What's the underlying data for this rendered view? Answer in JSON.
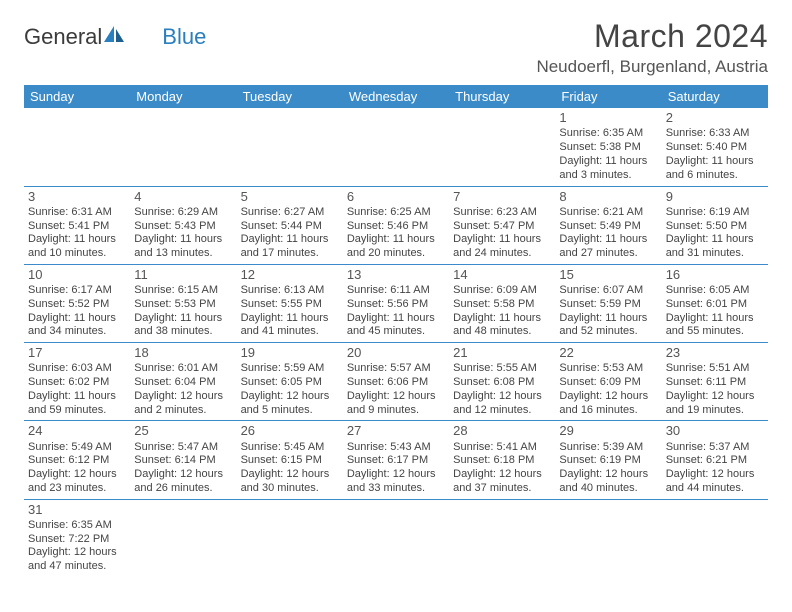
{
  "brand": {
    "part1": "General",
    "part2": "Blue"
  },
  "title": "March 2024",
  "location": "Neudoerfl, Burgenland, Austria",
  "colors": {
    "accent": "#3b8bc9",
    "text": "#444444",
    "header_text": "#ffffff",
    "bg": "#ffffff"
  },
  "day_headers": [
    "Sunday",
    "Monday",
    "Tuesday",
    "Wednesday",
    "Thursday",
    "Friday",
    "Saturday"
  ],
  "weeks": [
    [
      null,
      null,
      null,
      null,
      null,
      {
        "n": "1",
        "sunrise": "Sunrise: 6:35 AM",
        "sunset": "Sunset: 5:38 PM",
        "day1": "Daylight: 11 hours",
        "day2": "and 3 minutes."
      },
      {
        "n": "2",
        "sunrise": "Sunrise: 6:33 AM",
        "sunset": "Sunset: 5:40 PM",
        "day1": "Daylight: 11 hours",
        "day2": "and 6 minutes."
      }
    ],
    [
      {
        "n": "3",
        "sunrise": "Sunrise: 6:31 AM",
        "sunset": "Sunset: 5:41 PM",
        "day1": "Daylight: 11 hours",
        "day2": "and 10 minutes."
      },
      {
        "n": "4",
        "sunrise": "Sunrise: 6:29 AM",
        "sunset": "Sunset: 5:43 PM",
        "day1": "Daylight: 11 hours",
        "day2": "and 13 minutes."
      },
      {
        "n": "5",
        "sunrise": "Sunrise: 6:27 AM",
        "sunset": "Sunset: 5:44 PM",
        "day1": "Daylight: 11 hours",
        "day2": "and 17 minutes."
      },
      {
        "n": "6",
        "sunrise": "Sunrise: 6:25 AM",
        "sunset": "Sunset: 5:46 PM",
        "day1": "Daylight: 11 hours",
        "day2": "and 20 minutes."
      },
      {
        "n": "7",
        "sunrise": "Sunrise: 6:23 AM",
        "sunset": "Sunset: 5:47 PM",
        "day1": "Daylight: 11 hours",
        "day2": "and 24 minutes."
      },
      {
        "n": "8",
        "sunrise": "Sunrise: 6:21 AM",
        "sunset": "Sunset: 5:49 PM",
        "day1": "Daylight: 11 hours",
        "day2": "and 27 minutes."
      },
      {
        "n": "9",
        "sunrise": "Sunrise: 6:19 AM",
        "sunset": "Sunset: 5:50 PM",
        "day1": "Daylight: 11 hours",
        "day2": "and 31 minutes."
      }
    ],
    [
      {
        "n": "10",
        "sunrise": "Sunrise: 6:17 AM",
        "sunset": "Sunset: 5:52 PM",
        "day1": "Daylight: 11 hours",
        "day2": "and 34 minutes."
      },
      {
        "n": "11",
        "sunrise": "Sunrise: 6:15 AM",
        "sunset": "Sunset: 5:53 PM",
        "day1": "Daylight: 11 hours",
        "day2": "and 38 minutes."
      },
      {
        "n": "12",
        "sunrise": "Sunrise: 6:13 AM",
        "sunset": "Sunset: 5:55 PM",
        "day1": "Daylight: 11 hours",
        "day2": "and 41 minutes."
      },
      {
        "n": "13",
        "sunrise": "Sunrise: 6:11 AM",
        "sunset": "Sunset: 5:56 PM",
        "day1": "Daylight: 11 hours",
        "day2": "and 45 minutes."
      },
      {
        "n": "14",
        "sunrise": "Sunrise: 6:09 AM",
        "sunset": "Sunset: 5:58 PM",
        "day1": "Daylight: 11 hours",
        "day2": "and 48 minutes."
      },
      {
        "n": "15",
        "sunrise": "Sunrise: 6:07 AM",
        "sunset": "Sunset: 5:59 PM",
        "day1": "Daylight: 11 hours",
        "day2": "and 52 minutes."
      },
      {
        "n": "16",
        "sunrise": "Sunrise: 6:05 AM",
        "sunset": "Sunset: 6:01 PM",
        "day1": "Daylight: 11 hours",
        "day2": "and 55 minutes."
      }
    ],
    [
      {
        "n": "17",
        "sunrise": "Sunrise: 6:03 AM",
        "sunset": "Sunset: 6:02 PM",
        "day1": "Daylight: 11 hours",
        "day2": "and 59 minutes."
      },
      {
        "n": "18",
        "sunrise": "Sunrise: 6:01 AM",
        "sunset": "Sunset: 6:04 PM",
        "day1": "Daylight: 12 hours",
        "day2": "and 2 minutes."
      },
      {
        "n": "19",
        "sunrise": "Sunrise: 5:59 AM",
        "sunset": "Sunset: 6:05 PM",
        "day1": "Daylight: 12 hours",
        "day2": "and 5 minutes."
      },
      {
        "n": "20",
        "sunrise": "Sunrise: 5:57 AM",
        "sunset": "Sunset: 6:06 PM",
        "day1": "Daylight: 12 hours",
        "day2": "and 9 minutes."
      },
      {
        "n": "21",
        "sunrise": "Sunrise: 5:55 AM",
        "sunset": "Sunset: 6:08 PM",
        "day1": "Daylight: 12 hours",
        "day2": "and 12 minutes."
      },
      {
        "n": "22",
        "sunrise": "Sunrise: 5:53 AM",
        "sunset": "Sunset: 6:09 PM",
        "day1": "Daylight: 12 hours",
        "day2": "and 16 minutes."
      },
      {
        "n": "23",
        "sunrise": "Sunrise: 5:51 AM",
        "sunset": "Sunset: 6:11 PM",
        "day1": "Daylight: 12 hours",
        "day2": "and 19 minutes."
      }
    ],
    [
      {
        "n": "24",
        "sunrise": "Sunrise: 5:49 AM",
        "sunset": "Sunset: 6:12 PM",
        "day1": "Daylight: 12 hours",
        "day2": "and 23 minutes."
      },
      {
        "n": "25",
        "sunrise": "Sunrise: 5:47 AM",
        "sunset": "Sunset: 6:14 PM",
        "day1": "Daylight: 12 hours",
        "day2": "and 26 minutes."
      },
      {
        "n": "26",
        "sunrise": "Sunrise: 5:45 AM",
        "sunset": "Sunset: 6:15 PM",
        "day1": "Daylight: 12 hours",
        "day2": "and 30 minutes."
      },
      {
        "n": "27",
        "sunrise": "Sunrise: 5:43 AM",
        "sunset": "Sunset: 6:17 PM",
        "day1": "Daylight: 12 hours",
        "day2": "and 33 minutes."
      },
      {
        "n": "28",
        "sunrise": "Sunrise: 5:41 AM",
        "sunset": "Sunset: 6:18 PM",
        "day1": "Daylight: 12 hours",
        "day2": "and 37 minutes."
      },
      {
        "n": "29",
        "sunrise": "Sunrise: 5:39 AM",
        "sunset": "Sunset: 6:19 PM",
        "day1": "Daylight: 12 hours",
        "day2": "and 40 minutes."
      },
      {
        "n": "30",
        "sunrise": "Sunrise: 5:37 AM",
        "sunset": "Sunset: 6:21 PM",
        "day1": "Daylight: 12 hours",
        "day2": "and 44 minutes."
      }
    ],
    [
      {
        "n": "31",
        "sunrise": "Sunrise: 6:35 AM",
        "sunset": "Sunset: 7:22 PM",
        "day1": "Daylight: 12 hours",
        "day2": "and 47 minutes."
      },
      null,
      null,
      null,
      null,
      null,
      null
    ]
  ]
}
